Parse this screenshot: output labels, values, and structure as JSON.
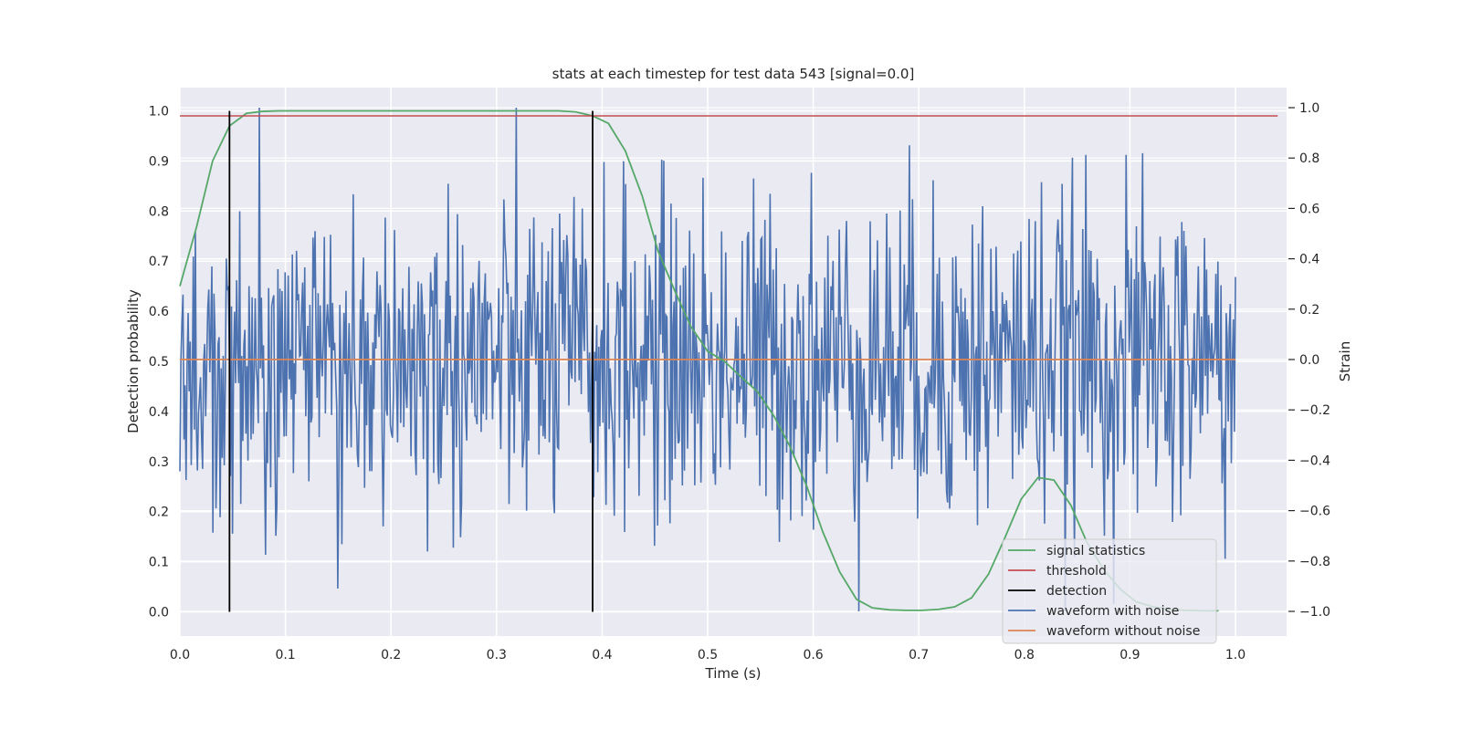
{
  "chart_data": {
    "type": "line",
    "title": "stats at each timestep for test data 543 [signal=0.0]",
    "xlabel": "Time (s)",
    "ylabel_left": "Detection probability",
    "ylabel_right": "Strain",
    "xlim": [
      0.0,
      1.05
    ],
    "ylim_left": [
      -0.05,
      1.05
    ],
    "ylim_right": [
      -1.1,
      1.1
    ],
    "x_ticks": [
      "0.0",
      "0.1",
      "0.2",
      "0.3",
      "0.4",
      "0.5",
      "0.6",
      "0.7",
      "0.8",
      "0.9",
      "1.0"
    ],
    "y_left_ticks": [
      "0.0",
      "0.1",
      "0.2",
      "0.3",
      "0.4",
      "0.5",
      "0.6",
      "0.7",
      "0.8",
      "0.9",
      "1.0"
    ],
    "y_right_ticks": [
      "−1.0",
      "−0.8",
      "−0.6",
      "−0.4",
      "−0.2",
      "0.0",
      "0.2",
      "0.4",
      "0.6",
      "0.8",
      "1.0"
    ],
    "grid": true,
    "legend_position": "lower-right",
    "colors": {
      "plot_background": "#eaeaf2",
      "grid": "#ffffff",
      "signal_statistics": "#55a868",
      "threshold": "#c44e52",
      "detection": "#000000",
      "waveform_with_noise": "#4c72b0",
      "waveform_without_noise": "#dd8452"
    },
    "series": [
      {
        "name": "signal statistics",
        "axis": "left",
        "x": [
          0.0,
          0.016,
          0.031,
          0.047,
          0.063,
          0.078,
          0.094,
          0.11,
          0.125,
          0.141,
          0.156,
          0.172,
          0.188,
          0.203,
          0.219,
          0.234,
          0.25,
          0.266,
          0.281,
          0.297,
          0.313,
          0.328,
          0.344,
          0.359,
          0.375,
          0.391,
          0.406,
          0.422,
          0.438,
          0.453,
          0.469,
          0.484,
          0.5,
          0.516,
          0.531,
          0.547,
          0.563,
          0.578,
          0.594,
          0.609,
          0.625,
          0.641,
          0.656,
          0.672,
          0.688,
          0.703,
          0.719,
          0.734,
          0.75,
          0.766,
          0.781,
          0.797,
          0.813,
          0.828,
          0.844,
          0.859,
          0.875,
          0.891,
          0.906,
          0.922,
          0.938,
          0.953,
          0.969,
          0.984
        ],
        "y": [
          0.65,
          0.77,
          0.9,
          0.97,
          0.995,
          0.999,
          1.0,
          1.0,
          1.0,
          1.0,
          1.0,
          1.0,
          1.0,
          1.0,
          1.0,
          1.0,
          1.0,
          1.0,
          1.0,
          1.0,
          1.0,
          1.0,
          1.0,
          1.0,
          0.998,
          0.99,
          0.975,
          0.92,
          0.83,
          0.72,
          0.64,
          0.57,
          0.52,
          0.5,
          0.47,
          0.44,
          0.39,
          0.33,
          0.25,
          0.16,
          0.08,
          0.025,
          0.008,
          0.004,
          0.003,
          0.003,
          0.005,
          0.01,
          0.028,
          0.075,
          0.145,
          0.225,
          0.268,
          0.263,
          0.213,
          0.14,
          0.085,
          0.045,
          0.02,
          0.01,
          0.005,
          0.003,
          0.002,
          0.002
        ]
      },
      {
        "name": "threshold",
        "axis": "left",
        "x": [
          0.0,
          1.04
        ],
        "y": [
          0.99,
          0.99
        ]
      },
      {
        "name": "detection",
        "axis": "left",
        "x": [
          0.047,
          0.391
        ],
        "y_range": [
          0.0,
          1.0
        ]
      },
      {
        "name": "waveform with noise",
        "axis": "right",
        "x_range": [
          0.0,
          1.0
        ],
        "samples": 1024,
        "mean": 0.0,
        "std": 0.33,
        "y_range_observed": [
          -1.0,
          1.0
        ]
      },
      {
        "name": "waveform without noise",
        "axis": "right",
        "x": [
          0.0,
          1.0
        ],
        "y": [
          0.0,
          0.0
        ]
      }
    ]
  }
}
